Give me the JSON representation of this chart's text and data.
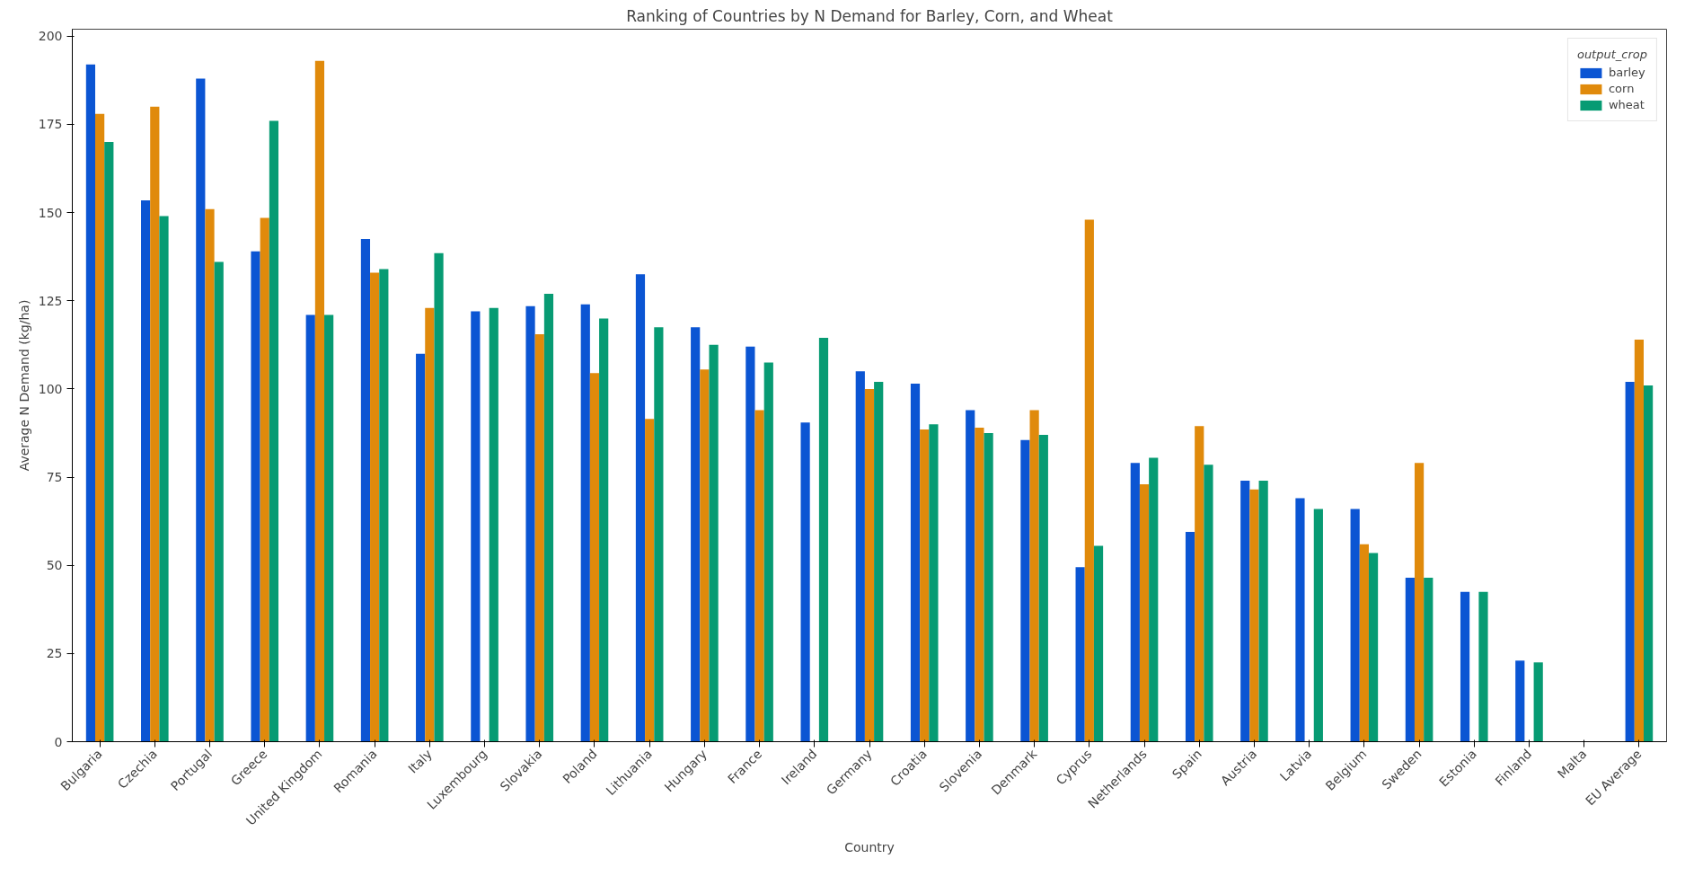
{
  "chart_data": {
    "type": "bar",
    "title": "Ranking of Countries by N Demand for Barley, Corn, and Wheat",
    "xlabel": "Country",
    "ylabel": "Average N Demand (kg/ha)",
    "legend_title": "output_crop",
    "legend": "top right",
    "grid": false,
    "categories": [
      "Bulgaria",
      "Czechia",
      "Portugal",
      "Greece",
      "United Kingdom",
      "Romania",
      "Italy",
      "Luxembourg",
      "Slovakia",
      "Poland",
      "Lithuania",
      "Hungary",
      "France",
      "Ireland",
      "Germany",
      "Croatia",
      "Slovenia",
      "Denmark",
      "Cyprus",
      "Netherlands",
      "Spain",
      "Austria",
      "Latvia",
      "Belgium",
      "Sweden",
      "Estonia",
      "Finland",
      "Malta",
      "EU Average"
    ],
    "ylim": [
      0,
      202
    ],
    "yticks": [
      0,
      25,
      50,
      75,
      100,
      125,
      150,
      175,
      200
    ],
    "series": [
      {
        "name": "barley",
        "color": "#0b55d3",
        "values": [
          192,
          153.5,
          188,
          139,
          121,
          142.5,
          110,
          122,
          123.5,
          124,
          132.5,
          117.5,
          112,
          90.5,
          105,
          101.5,
          94,
          85.5,
          49.5,
          79,
          59.5,
          74,
          69,
          66,
          46.5,
          42.5,
          23,
          null,
          102
        ]
      },
      {
        "name": "corn",
        "color": "#e08a0b",
        "values": [
          178,
          180,
          151,
          148.5,
          193,
          133,
          123,
          null,
          115.5,
          104.5,
          91.5,
          105.5,
          94,
          null,
          100,
          88.5,
          89,
          94,
          148,
          73,
          89.5,
          71.5,
          null,
          56,
          79,
          null,
          null,
          null,
          114
        ]
      },
      {
        "name": "wheat",
        "color": "#079b73",
        "values": [
          170,
          149,
          136,
          176,
          121,
          134,
          138.5,
          123,
          127,
          120,
          117.5,
          112.5,
          107.5,
          114.5,
          102,
          90,
          87.5,
          87,
          55.5,
          80.5,
          78.5,
          74,
          66,
          53.5,
          46.5,
          42.5,
          22.5,
          null,
          101
        ]
      }
    ]
  }
}
